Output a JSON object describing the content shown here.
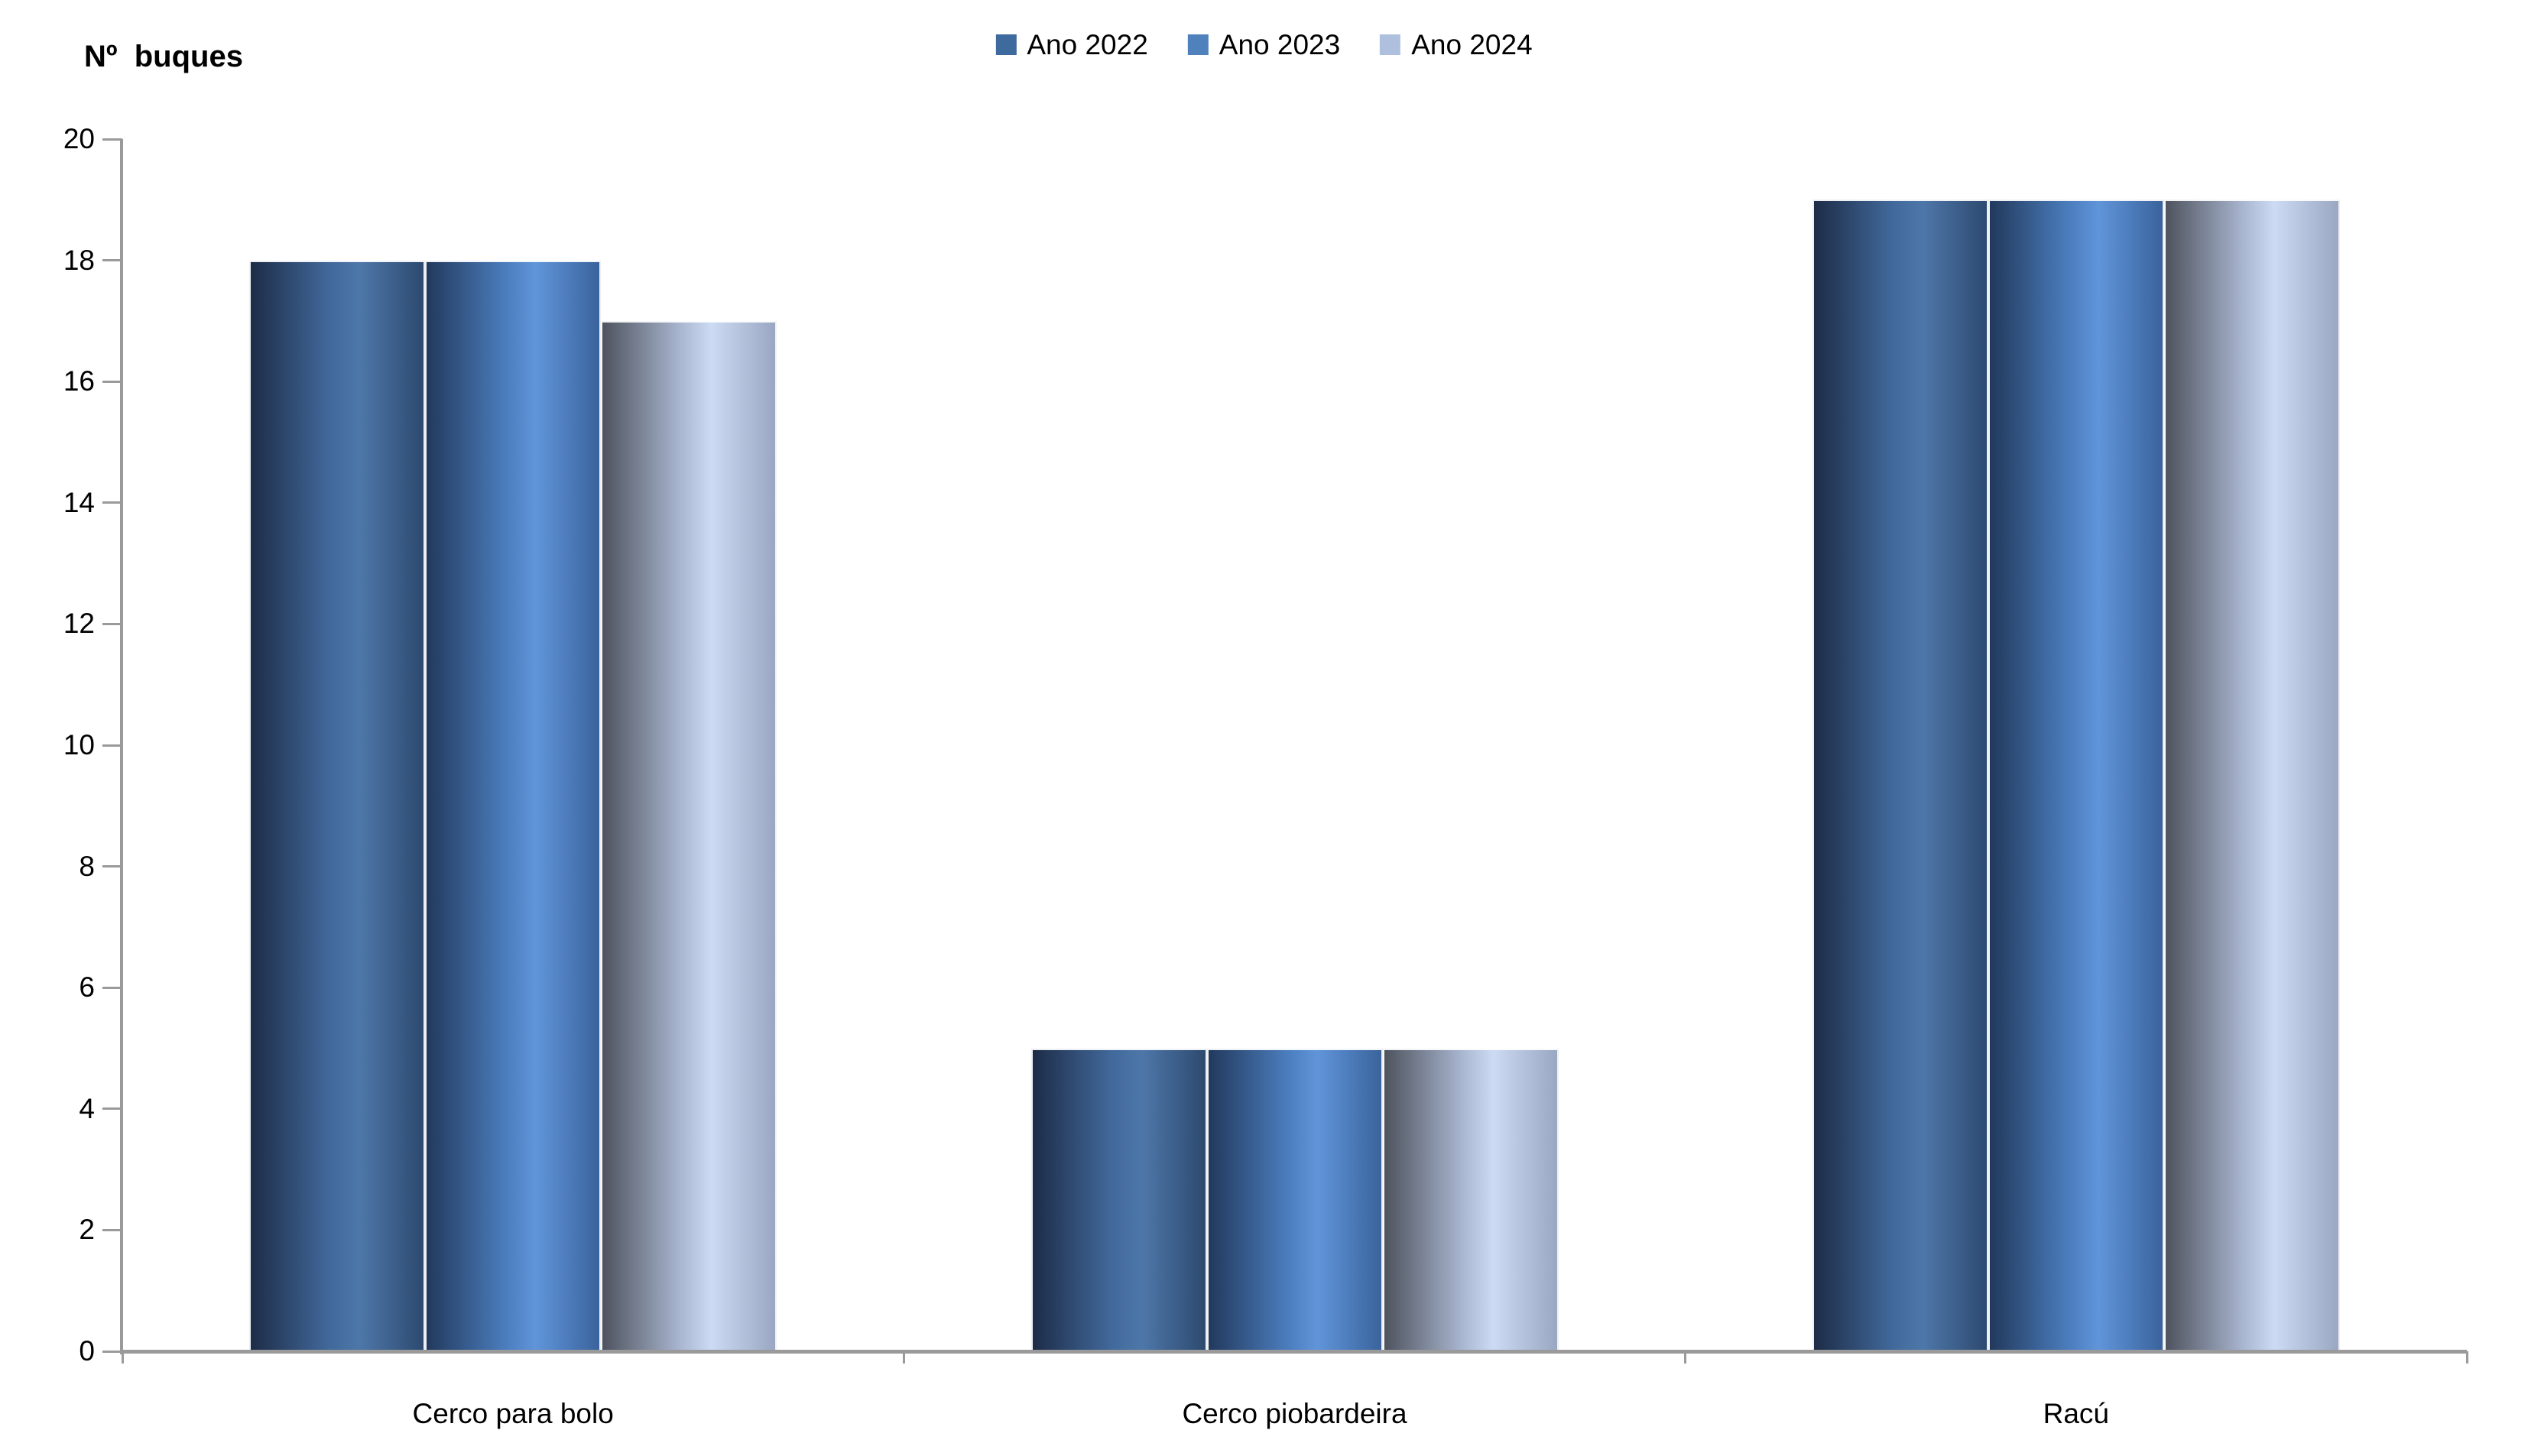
{
  "y_axis_title": "Nº  buques",
  "chart_data": {
    "type": "bar",
    "title": "",
    "ylabel": "Nº  buques",
    "xlabel": "",
    "categories": [
      "Cerco para bolo",
      "Cerco piobardeira",
      "Racú"
    ],
    "series": [
      {
        "name": "Ano 2022",
        "values": [
          18,
          5,
          19
        ],
        "legend_color": "#3e6a9d",
        "gradient": [
          "#1d2c47",
          "#41689a",
          "#4e77a9",
          "#2d4a70"
        ]
      },
      {
        "name": "Ano 2023",
        "values": [
          18,
          5,
          19
        ],
        "legend_color": "#4f81bd",
        "gradient": [
          "#22395c",
          "#4a7cbc",
          "#6095da",
          "#3a639c"
        ]
      },
      {
        "name": "Ano 2024",
        "values": [
          17,
          5,
          19
        ],
        "legend_color": "#afc0de",
        "gradient": [
          "#4e535e",
          "#a9b6d0",
          "#ccdaf4",
          "#9aa7c2"
        ]
      }
    ],
    "ylim": [
      0,
      20
    ],
    "ytick_step": 2,
    "yticks": [
      0,
      2,
      4,
      6,
      8,
      10,
      12,
      14,
      16,
      18,
      20
    ],
    "grid": false,
    "legend_position": "top-center",
    "bar_style": "horizontal-cylinder-gradient",
    "axis_color": "#9a9a9a",
    "text_color": "#000000"
  }
}
